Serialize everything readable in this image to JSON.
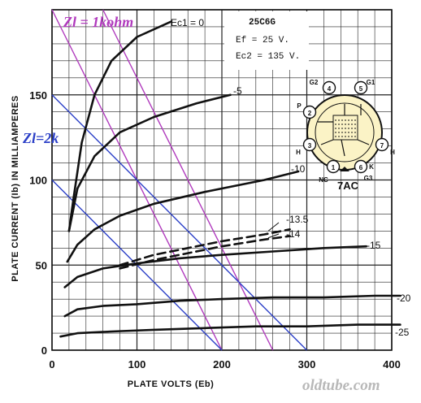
{
  "chart_data": {
    "type": "line",
    "title": "25C6G",
    "xlabel": "PLATE VOLTS (Eb)",
    "ylabel": "PLATE CURRENT (Ib) IN MILLIAMPERES",
    "xlim": [
      0,
      400
    ],
    "ylim": [
      0,
      200
    ],
    "xticks": [
      "0",
      "100",
      "200",
      "300",
      "400"
    ],
    "yticks": [
      "0",
      "50",
      "100",
      "150"
    ],
    "grid": true,
    "conditions": [
      "Ef = 25 V.",
      "Ec2 = 135 V."
    ],
    "series": [
      {
        "name": "Ec1 = 0",
        "x": [
          20,
          25,
          35,
          50,
          70,
          100,
          140
        ],
        "y": [
          70,
          88,
          122,
          150,
          170,
          184,
          193
        ]
      },
      {
        "name": "-5",
        "x": [
          20,
          30,
          50,
          80,
          120,
          170,
          210
        ],
        "y": [
          70,
          95,
          114,
          128,
          137,
          145,
          150
        ]
      },
      {
        "name": "-10",
        "x": [
          18,
          30,
          50,
          80,
          120,
          180,
          250,
          290
        ],
        "y": [
          52,
          62,
          71,
          79,
          86,
          93,
          100,
          105
        ]
      },
      {
        "name": "-13.5",
        "x": [
          80,
          120,
          160,
          200,
          250,
          280
        ],
        "y": [
          50,
          56,
          60,
          64,
          68,
          71
        ]
      },
      {
        "name": "-14",
        "x": [
          80,
          120,
          160,
          200,
          250,
          280
        ],
        "y": [
          48,
          53,
          57,
          61,
          65,
          67
        ]
      },
      {
        "name": "-15",
        "x": [
          15,
          30,
          60,
          100,
          150,
          200,
          260,
          320,
          370
        ],
        "y": [
          37,
          43,
          48,
          51,
          54,
          56,
          58,
          60,
          61
        ]
      },
      {
        "name": "-20",
        "x": [
          15,
          30,
          60,
          100,
          150,
          200,
          260,
          320,
          380,
          410
        ],
        "y": [
          20,
          24,
          26,
          27,
          29,
          30,
          31,
          31,
          32,
          32
        ]
      },
      {
        "name": "-25",
        "x": [
          10,
          30,
          70,
          120,
          180,
          240,
          300,
          360,
          410
        ],
        "y": [
          8,
          10,
          11,
          12,
          13,
          14,
          14,
          15,
          15
        ]
      }
    ],
    "load_lines": [
      {
        "name": "Zl = 1kohm",
        "color": "#b03abd",
        "lines": [
          {
            "x": [
              0,
              200
            ],
            "y": [
              200,
              0
            ]
          },
          {
            "x": [
              60,
              260
            ],
            "y": [
              200,
              0
            ]
          }
        ]
      },
      {
        "name": "Zl=2k",
        "color": "#2b3fc7",
        "lines": [
          {
            "x": [
              0,
              200
            ],
            "y": [
              100,
              0
            ]
          },
          {
            "x": [
              0,
              300
            ],
            "y": [
              150,
              0
            ]
          }
        ]
      }
    ],
    "tube_base": {
      "name": "7AC",
      "pins": [
        {
          "num": "1",
          "label": "NC"
        },
        {
          "num": "2",
          "label": "P"
        },
        {
          "num": "3",
          "label": "H"
        },
        {
          "num": "4",
          "label": "G2"
        },
        {
          "num": "5",
          "label": "G1"
        },
        {
          "num": "6",
          "label": "K"
        },
        {
          "num": "7",
          "label": "H"
        },
        {
          "num": "",
          "label": "G3"
        }
      ]
    },
    "watermark": "oldtube.com"
  }
}
